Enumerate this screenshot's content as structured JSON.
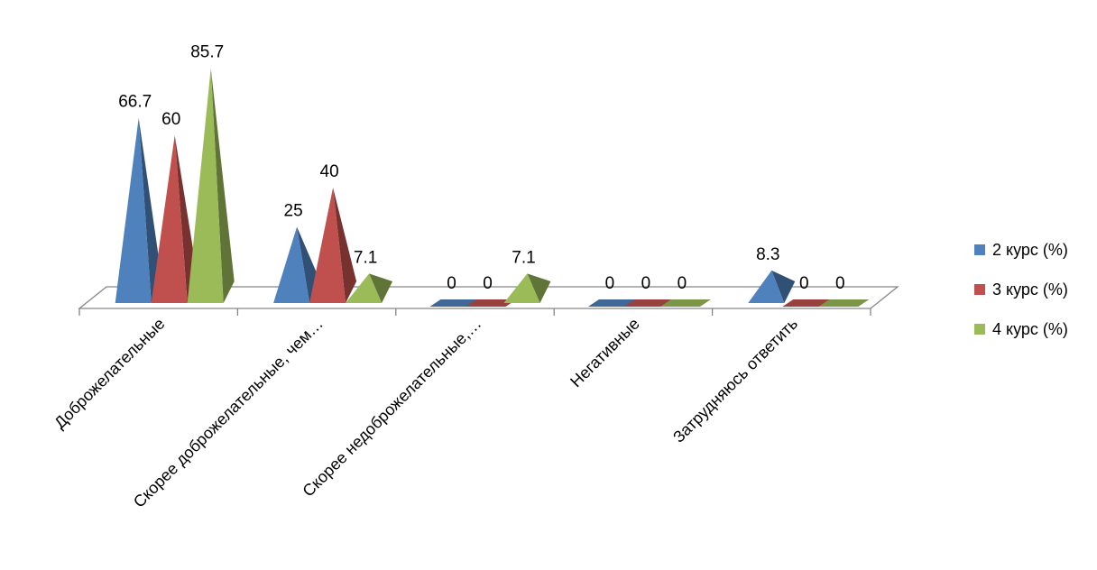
{
  "chart_data": {
    "type": "bar",
    "categories": [
      "Доброжелательные",
      "Скорее доброжелательные, чем…",
      "Скорее недоброжелательные,…",
      "Негативные",
      "Затрудняюсь ответить"
    ],
    "series": [
      {
        "name": "2 курс (%)",
        "values": [
          66.7,
          25,
          0,
          0,
          8.3
        ],
        "color": "#4f81bd"
      },
      {
        "name": "3 курс (%)",
        "values": [
          60,
          40,
          0,
          0,
          0
        ],
        "color": "#c0504d"
      },
      {
        "name": "4 курс (%)",
        "values": [
          85.7,
          7.1,
          7.1,
          0,
          0
        ],
        "color": "#9bbb59"
      }
    ],
    "data_labels": [
      [
        "66.7",
        "25",
        "0",
        "0",
        "8.3"
      ],
      [
        "60",
        "40",
        "0",
        "0",
        "0"
      ],
      [
        "85.7",
        "7.1",
        "7.1",
        "0",
        "0"
      ]
    ],
    "title": "",
    "xlabel": "",
    "ylabel": "",
    "ylim": [
      0,
      100
    ],
    "grid": false,
    "legend_position": "right",
    "style": "3d-pyramid"
  }
}
